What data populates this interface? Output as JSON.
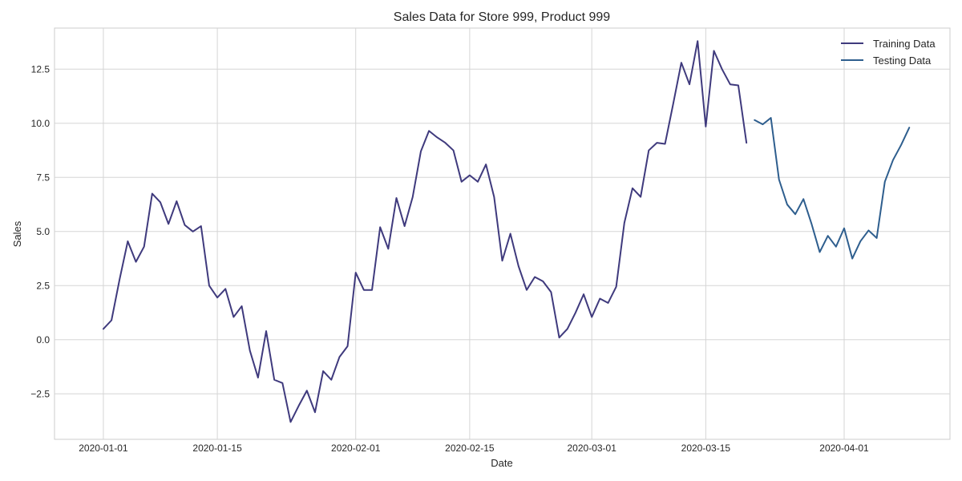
{
  "chart_data": {
    "type": "line",
    "title": "Sales Data for Store 999, Product 999",
    "xlabel": "Date",
    "ylabel": "Sales",
    "x_type": "date",
    "xlim": [
      "2019-12-26",
      "2020-04-14"
    ],
    "ylim": [
      -4.6,
      14.4
    ],
    "x_ticks": [
      "2020-01-01",
      "2020-01-15",
      "2020-02-01",
      "2020-02-15",
      "2020-03-01",
      "2020-03-15",
      "2020-04-01"
    ],
    "y_ticks": [
      -2.5,
      0.0,
      2.5,
      5.0,
      7.5,
      10.0,
      12.5
    ],
    "y_tick_labels": [
      "−2.5",
      "0.0",
      "2.5",
      "5.0",
      "7.5",
      "10.0",
      "12.5"
    ],
    "grid": true,
    "legend_position": "top-right",
    "series": [
      {
        "name": "Training Data",
        "color": "#3f3a7d",
        "x": [
          "2020-01-01",
          "2020-01-02",
          "2020-01-03",
          "2020-01-04",
          "2020-01-05",
          "2020-01-06",
          "2020-01-07",
          "2020-01-08",
          "2020-01-09",
          "2020-01-10",
          "2020-01-11",
          "2020-01-12",
          "2020-01-13",
          "2020-01-14",
          "2020-01-15",
          "2020-01-16",
          "2020-01-17",
          "2020-01-18",
          "2020-01-19",
          "2020-01-20",
          "2020-01-21",
          "2020-01-22",
          "2020-01-23",
          "2020-01-24",
          "2020-01-25",
          "2020-01-26",
          "2020-01-27",
          "2020-01-28",
          "2020-01-29",
          "2020-01-30",
          "2020-01-31",
          "2020-02-01",
          "2020-02-02",
          "2020-02-03",
          "2020-02-04",
          "2020-02-05",
          "2020-02-06",
          "2020-02-07",
          "2020-02-08",
          "2020-02-09",
          "2020-02-10",
          "2020-02-11",
          "2020-02-12",
          "2020-02-13",
          "2020-02-14",
          "2020-02-15",
          "2020-02-16",
          "2020-02-17",
          "2020-02-18",
          "2020-02-19",
          "2020-02-20",
          "2020-02-21",
          "2020-02-22",
          "2020-02-23",
          "2020-02-24",
          "2020-02-25",
          "2020-02-26",
          "2020-02-27",
          "2020-02-28",
          "2020-02-29",
          "2020-03-01",
          "2020-03-02",
          "2020-03-03",
          "2020-03-04",
          "2020-03-05",
          "2020-03-06",
          "2020-03-07",
          "2020-03-08",
          "2020-03-09",
          "2020-03-10",
          "2020-03-11",
          "2020-03-12",
          "2020-03-13",
          "2020-03-14",
          "2020-03-15",
          "2020-03-16",
          "2020-03-17",
          "2020-03-18",
          "2020-03-19",
          "2020-03-20"
        ],
        "values": [
          0.5,
          0.9,
          2.8,
          4.55,
          3.6,
          4.3,
          6.75,
          6.35,
          5.35,
          6.4,
          5.3,
          5.0,
          5.25,
          2.5,
          1.95,
          2.35,
          1.05,
          1.55,
          -0.5,
          -1.75,
          0.4,
          -1.85,
          -2.0,
          -3.8,
          -3.05,
          -2.35,
          -3.35,
          -1.45,
          -1.85,
          -0.8,
          -0.3,
          3.1,
          2.3,
          2.3,
          5.2,
          4.2,
          6.55,
          5.25,
          6.6,
          8.7,
          9.65,
          9.35,
          9.1,
          8.75,
          7.3,
          7.6,
          7.3,
          8.1,
          6.6,
          3.65,
          4.9,
          3.4,
          2.3,
          2.9,
          2.7,
          2.2,
          0.1,
          0.5,
          1.25,
          2.1,
          1.05,
          1.9,
          1.7,
          2.45,
          5.4,
          7.0,
          6.6,
          8.75,
          9.1,
          9.05,
          10.9,
          12.8,
          11.8,
          13.8,
          9.85,
          13.35,
          12.5,
          11.8,
          11.75,
          9.1
        ]
      },
      {
        "name": "Testing Data",
        "color": "#2e5e8e",
        "x": [
          "2020-03-21",
          "2020-03-22",
          "2020-03-23",
          "2020-03-24",
          "2020-03-25",
          "2020-03-26",
          "2020-03-27",
          "2020-03-28",
          "2020-03-29",
          "2020-03-30",
          "2020-03-31",
          "2020-04-01",
          "2020-04-02",
          "2020-04-03",
          "2020-04-04",
          "2020-04-05",
          "2020-04-06",
          "2020-04-07",
          "2020-04-08",
          "2020-04-09"
        ],
        "values": [
          10.15,
          9.95,
          10.25,
          7.4,
          6.25,
          5.8,
          6.5,
          5.35,
          4.05,
          4.8,
          4.3,
          5.15,
          3.75,
          4.55,
          5.05,
          4.7,
          7.3,
          8.3,
          9.0,
          9.8
        ]
      }
    ]
  }
}
